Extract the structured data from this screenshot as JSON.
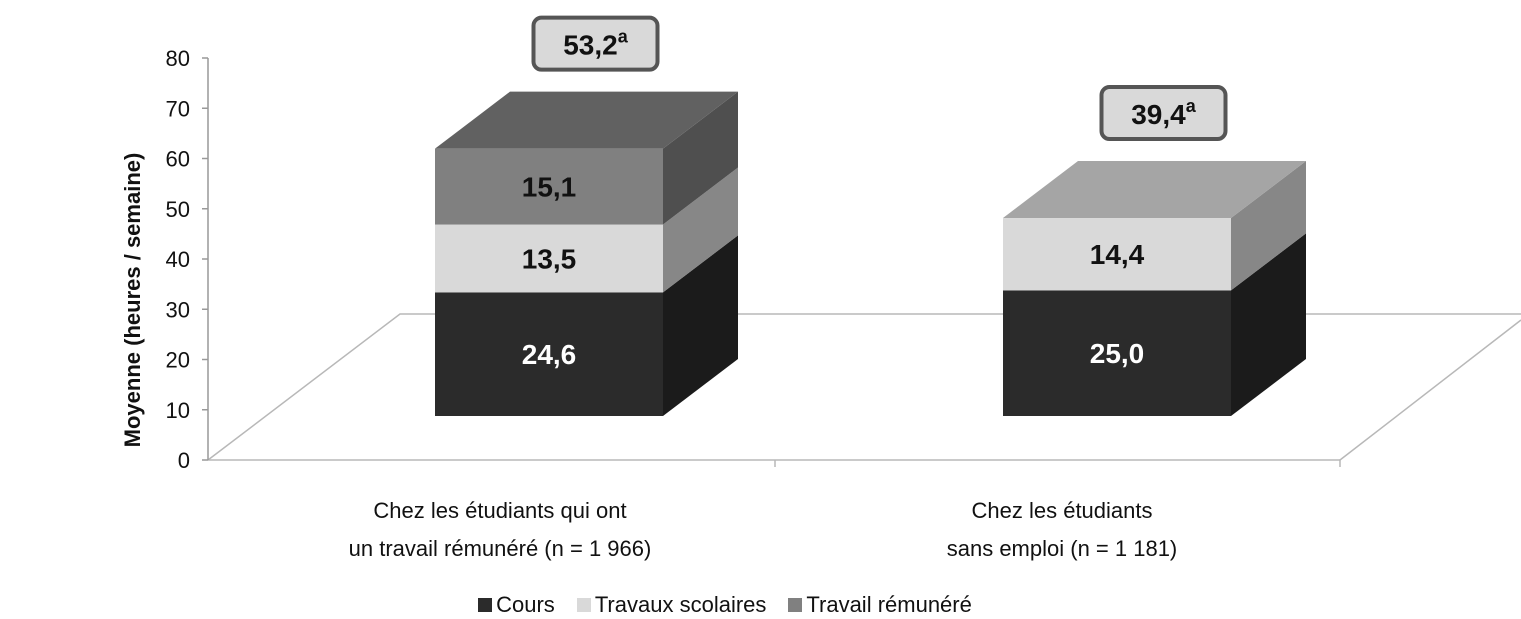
{
  "chart_data": {
    "type": "bar3d_stacked",
    "y_label": "Moyenne (heures / semaine)",
    "categories": [
      "Chez les étudiants qui ont\nun travail rémunéré (n = 1 966)",
      "Chez les étudiants\nsans emploi (n = 1 181)"
    ],
    "series": [
      {
        "name": "Cours",
        "color": "#2b2b2b",
        "values": [
          24.6,
          25.0
        ],
        "value_labels": [
          "24,6",
          "25,0"
        ]
      },
      {
        "name": "Travaux scolaires",
        "color": "#d9d9d9",
        "values": [
          13.5,
          14.4
        ],
        "value_labels": [
          "13,5",
          "14,4"
        ]
      },
      {
        "name": "Travail rémunéré",
        "color": "#808080",
        "values": [
          15.1,
          null
        ],
        "value_labels": [
          "15,1",
          null
        ]
      }
    ],
    "annotations": [
      {
        "text": "53,2",
        "sup": "a"
      },
      {
        "text": "39,4",
        "sup": "a"
      }
    ],
    "ylim": [
      0,
      80
    ],
    "yticks": [
      0,
      10,
      20,
      30,
      40,
      50,
      60,
      70,
      80
    ],
    "grid": false,
    "legend": "bottom"
  }
}
